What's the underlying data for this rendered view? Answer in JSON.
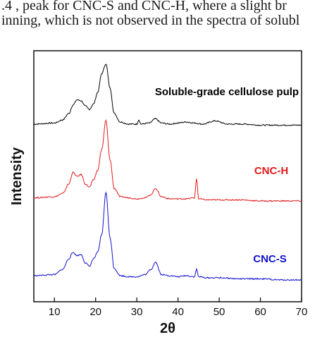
{
  "caption": {
    "line1": ".4 , peak for CNC-S and CNC-H, where a slight br",
    "line2": "inning, which is not observed in the spectra of solubl"
  },
  "chart_data": {
    "type": "line",
    "xlabel": "2θ",
    "ylabel": "Intensity",
    "xlim": [
      5,
      70
    ],
    "xticks": [
      10,
      20,
      30,
      40,
      50,
      60,
      70
    ],
    "yticks_shown": false,
    "grid": false,
    "legend": "inline labels beside each trace",
    "series": [
      {
        "name": "Soluble-grade cellulose pulp",
        "color": "#000000",
        "x": [
          5,
          10,
          12,
          13.5,
          14.5,
          15.5,
          16.5,
          17.5,
          18.5,
          19.5,
          20.5,
          21.5,
          22.5,
          23.5,
          24.5,
          26,
          28,
          30,
          30.5,
          31,
          33,
          34.5,
          36,
          38,
          40,
          42,
          44,
          46,
          49,
          52,
          56,
          60,
          65,
          70
        ],
        "y": [
          0.08,
          0.09,
          0.12,
          0.18,
          0.26,
          0.31,
          0.3,
          0.25,
          0.22,
          0.27,
          0.38,
          0.56,
          0.65,
          0.42,
          0.18,
          0.1,
          0.08,
          0.08,
          0.12,
          0.08,
          0.09,
          0.13,
          0.09,
          0.08,
          0.09,
          0.1,
          0.09,
          0.08,
          0.11,
          0.08,
          0.08,
          0.07,
          0.07,
          0.07
        ]
      },
      {
        "name": "CNC-H",
        "color": "#e31a1c",
        "x": [
          5,
          10,
          12,
          13.5,
          14.5,
          15.5,
          16.5,
          17.5,
          18.5,
          19.5,
          20.5,
          21.5,
          22.5,
          23.5,
          24.5,
          26,
          28,
          30,
          32,
          33.5,
          34.5,
          36,
          38,
          40,
          42,
          44,
          44.5,
          45,
          47,
          50,
          55,
          60,
          65,
          70
        ],
        "y": [
          0.09,
          0.1,
          0.13,
          0.22,
          0.33,
          0.29,
          0.31,
          0.22,
          0.19,
          0.26,
          0.35,
          0.55,
          0.82,
          0.45,
          0.18,
          0.1,
          0.09,
          0.08,
          0.09,
          0.12,
          0.18,
          0.1,
          0.08,
          0.08,
          0.08,
          0.09,
          0.27,
          0.08,
          0.07,
          0.07,
          0.07,
          0.06,
          0.06,
          0.06
        ]
      },
      {
        "name": "CNC-S",
        "color": "#1010d0",
        "x": [
          5,
          10,
          12,
          13.5,
          14.5,
          15.5,
          16.5,
          17.5,
          18.5,
          19.5,
          20.5,
          21.5,
          22.5,
          23.5,
          24.5,
          26,
          28,
          30,
          32,
          33.5,
          34.5,
          36,
          38,
          40,
          42,
          44,
          44.5,
          45,
          47,
          50,
          55,
          60,
          65,
          70
        ],
        "y": [
          0.06,
          0.07,
          0.12,
          0.22,
          0.28,
          0.25,
          0.26,
          0.18,
          0.15,
          0.22,
          0.28,
          0.45,
          0.85,
          0.42,
          0.13,
          0.06,
          0.05,
          0.05,
          0.07,
          0.12,
          0.19,
          0.07,
          0.06,
          0.05,
          0.06,
          0.05,
          0.12,
          0.05,
          0.04,
          0.04,
          0.03,
          0.03,
          0.02,
          0.02
        ]
      }
    ]
  }
}
